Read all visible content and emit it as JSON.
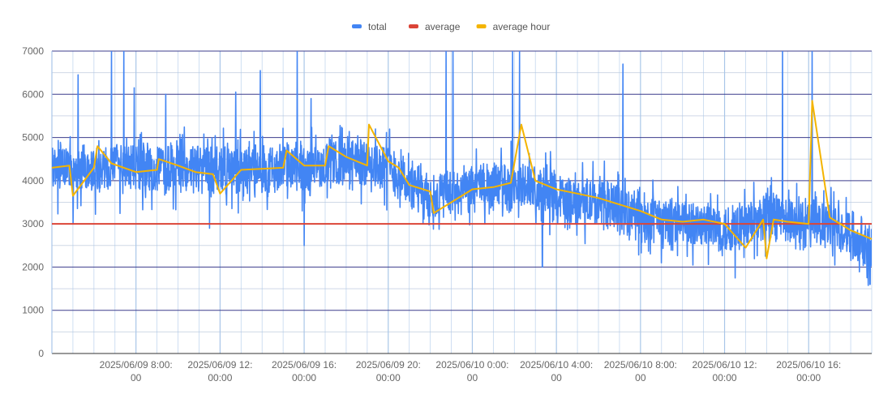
{
  "chart_data": {
    "type": "line",
    "title": "",
    "xlabel": "",
    "ylabel": "",
    "ylim": [
      0,
      7000
    ],
    "y_ticks": [
      0,
      1000,
      2000,
      3000,
      4000,
      5000,
      6000,
      7000
    ],
    "y_tick_labels": [
      "0",
      "1000",
      "2000",
      "3000",
      "4000",
      "5000",
      "6000",
      "7000"
    ],
    "x_range_hours": [
      "2025/06/09 4:00",
      "2025/06/10 19:00"
    ],
    "x_major_ticks": [
      {
        "x": "2025/06/09 8:00",
        "line1": "2025/06/09 8:00:",
        "line2": "00"
      },
      {
        "x": "2025/06/09 12:00",
        "line1": "2025/06/09 12:",
        "line2": "00:00"
      },
      {
        "x": "2025/06/09 16:00",
        "line1": "2025/06/09 16:",
        "line2": "00:00"
      },
      {
        "x": "2025/06/09 20:00",
        "line1": "2025/06/09 20:",
        "line2": "00:00"
      },
      {
        "x": "2025/06/10 0:00",
        "line1": "2025/06/10 0:00:",
        "line2": "00"
      },
      {
        "x": "2025/06/10 4:00",
        "line1": "2025/06/10 4:00:",
        "line2": "00"
      },
      {
        "x": "2025/06/10 8:00",
        "line1": "2025/06/10 8:00:",
        "line2": "00"
      },
      {
        "x": "2025/06/10 12:00",
        "line1": "2025/06/10 12:",
        "line2": "00:00"
      },
      {
        "x": "2025/06/10 16:00",
        "line1": "2025/06/10 16:",
        "line2": "00:00"
      }
    ],
    "grid": true,
    "legend_position": "top-center",
    "series": [
      {
        "name": "total",
        "color": "#4285f4",
        "note_shape": "dense noisy line",
        "trend": [
          [
            "2025/06/09 4:00",
            4300
          ],
          [
            "2025/06/09 6:00",
            4250
          ],
          [
            "2025/06/09 8:00",
            4300
          ],
          [
            "2025/06/09 12:00",
            4250
          ],
          [
            "2025/06/09 16:00",
            4300
          ],
          [
            "2025/06/09 18:00",
            4450
          ],
          [
            "2025/06/09 20:00",
            4350
          ],
          [
            "2025/06/09 21:00",
            3900
          ],
          [
            "2025/06/09 22:00",
            3600
          ],
          [
            "2025/06/10 0:00",
            3800
          ],
          [
            "2025/06/10 2:00",
            3900
          ],
          [
            "2025/06/10 4:00",
            3650
          ],
          [
            "2025/06/10 6:00",
            3450
          ],
          [
            "2025/06/10 8:00",
            3150
          ],
          [
            "2025/06/10 10:00",
            3050
          ],
          [
            "2025/06/10 12:00",
            2850
          ],
          [
            "2025/06/10 14:00",
            3150
          ],
          [
            "2025/06/10 16:00",
            3050
          ],
          [
            "2025/06/10 18:00",
            2800
          ],
          [
            "2025/06/10 19:00",
            2500
          ]
        ],
        "spikes": [
          [
            "2025/06/09 5:15",
            6450
          ],
          [
            "2025/06/09 6:50",
            7000
          ],
          [
            "2025/06/09 7:25",
            7000
          ],
          [
            "2025/06/09 7:55",
            6150
          ],
          [
            "2025/06/09 9:25",
            6000
          ],
          [
            "2025/06/09 12:45",
            6050
          ],
          [
            "2025/06/09 13:55",
            6550
          ],
          [
            "2025/06/09 15:40",
            7000
          ],
          [
            "2025/06/09 16:20",
            5900
          ],
          [
            "2025/06/09 22:45",
            7000
          ],
          [
            "2025/06/09 23:05",
            7000
          ],
          [
            "2025/06/10 1:55",
            7000
          ],
          [
            "2025/06/10 2:15",
            7000
          ],
          [
            "2025/06/10 7:10",
            6700
          ],
          [
            "2025/06/10 14:45",
            7000
          ],
          [
            "2025/06/10 16:10",
            7000
          ]
        ],
        "dips": [
          [
            "2025/06/09 5:00",
            3000
          ],
          [
            "2025/06/09 11:30",
            2900
          ],
          [
            "2025/06/09 16:00",
            2500
          ],
          [
            "2025/06/10 3:20",
            2000
          ],
          [
            "2025/06/10 9:00",
            2100
          ],
          [
            "2025/06/10 12:30",
            1750
          ],
          [
            "2025/06/10 18:55",
            1600
          ]
        ]
      },
      {
        "name": "average",
        "color": "#db4437",
        "points": [
          [
            "2025/06/09 4:00",
            3000
          ],
          [
            "2025/06/10 19:00",
            3000
          ]
        ]
      },
      {
        "name": "average hour",
        "color": "#f4b400",
        "points": [
          [
            "2025/06/09 4:00",
            4300
          ],
          [
            "2025/06/09 4:50",
            4350
          ],
          [
            "2025/06/09 5:00",
            3650
          ],
          [
            "2025/06/09 6:00",
            4300
          ],
          [
            "2025/06/09 6:10",
            4800
          ],
          [
            "2025/06/09 6:50",
            4400
          ],
          [
            "2025/06/09 8:00",
            4200
          ],
          [
            "2025/06/09 9:00",
            4250
          ],
          [
            "2025/06/09 9:05",
            4500
          ],
          [
            "2025/06/09 10:00",
            4350
          ],
          [
            "2025/06/09 10:50",
            4200
          ],
          [
            "2025/06/09 11:40",
            4150
          ],
          [
            "2025/06/09 12:00",
            3700
          ],
          [
            "2025/06/09 13:00",
            4250
          ],
          [
            "2025/06/09 15:00",
            4300
          ],
          [
            "2025/06/09 15:10",
            4700
          ],
          [
            "2025/06/09 16:00",
            4350
          ],
          [
            "2025/06/09 17:00",
            4350
          ],
          [
            "2025/06/09 17:10",
            4800
          ],
          [
            "2025/06/09 18:00",
            4550
          ],
          [
            "2025/06/09 19:00",
            4350
          ],
          [
            "2025/06/09 19:05",
            5300
          ],
          [
            "2025/06/09 20:00",
            4450
          ],
          [
            "2025/06/09 20:30",
            4300
          ],
          [
            "2025/06/09 21:00",
            3900
          ],
          [
            "2025/06/09 22:00",
            3750
          ],
          [
            "2025/06/09 22:10",
            3250
          ],
          [
            "2025/06/10 0:00",
            3800
          ],
          [
            "2025/06/10 1:00",
            3850
          ],
          [
            "2025/06/10 1:50",
            3950
          ],
          [
            "2025/06/10 2:20",
            5300
          ],
          [
            "2025/06/10 3:00",
            4000
          ],
          [
            "2025/06/10 4:00",
            3800
          ],
          [
            "2025/06/10 5:00",
            3700
          ],
          [
            "2025/06/10 6:00",
            3600
          ],
          [
            "2025/06/10 7:00",
            3450
          ],
          [
            "2025/06/10 8:00",
            3300
          ],
          [
            "2025/06/10 9:00",
            3100
          ],
          [
            "2025/06/10 10:00",
            3050
          ],
          [
            "2025/06/10 11:00",
            3100
          ],
          [
            "2025/06/10 12:00",
            3000
          ],
          [
            "2025/06/10 13:00",
            2450
          ],
          [
            "2025/06/10 13:50",
            3100
          ],
          [
            "2025/06/10 14:00",
            2200
          ],
          [
            "2025/06/10 14:20",
            3100
          ],
          [
            "2025/06/10 15:00",
            3050
          ],
          [
            "2025/06/10 16:00",
            3000
          ],
          [
            "2025/06/10 16:10",
            5850
          ],
          [
            "2025/06/10 17:00",
            3150
          ],
          [
            "2025/06/10 18:00",
            2850
          ],
          [
            "2025/06/10 19:00",
            2650
          ]
        ]
      }
    ]
  },
  "colors": {
    "major_grid": "#3c3c8c",
    "minor_grid": "#cfd8e6",
    "vertical_grid": "#a9c6e8",
    "tick_label": "#666666",
    "legend_text": "#555555"
  }
}
